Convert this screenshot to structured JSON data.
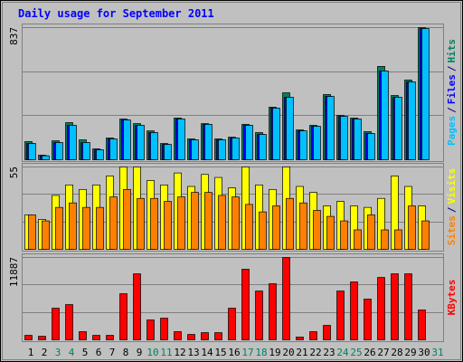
{
  "title": "Daily usage for September 2011",
  "legend_separator": "/",
  "categories": [
    "1",
    "2",
    "3",
    "4",
    "5",
    "6",
    "7",
    "8",
    "9",
    "10",
    "11",
    "12",
    "13",
    "14",
    "15",
    "16",
    "17",
    "18",
    "19",
    "20",
    "21",
    "22",
    "23",
    "24",
    "25",
    "26",
    "27",
    "28",
    "29",
    "30",
    "31"
  ],
  "category_colors": [
    "#000000",
    "#000000",
    "#00805C",
    "#00805C",
    "#000000",
    "#000000",
    "#000000",
    "#000000",
    "#000000",
    "#00805C",
    "#00805C",
    "#000000",
    "#000000",
    "#000000",
    "#000000",
    "#000000",
    "#00805C",
    "#00805C",
    "#000000",
    "#000000",
    "#000000",
    "#000000",
    "#000000",
    "#00805C",
    "#00805C",
    "#000000",
    "#000000",
    "#000000",
    "#000000",
    "#000000",
    "#00805C"
  ],
  "chart_data": [
    {
      "type": "bar",
      "ylim": [
        0,
        837
      ],
      "yticks": [
        837
      ],
      "series": [
        {
          "name": "Hits",
          "color": "#00805C",
          "values": [
            115,
            29,
            120,
            235,
            126,
            69,
            138,
            258,
            229,
            183,
            103,
            264,
            132,
            229,
            132,
            143,
            224,
            172,
            333,
            424,
            189,
            218,
            413,
            281,
            264,
            178,
            591,
            407,
            505,
            837,
            0
          ]
        },
        {
          "name": "Files",
          "color": "#0000FF",
          "values": [
            103,
            25,
            109,
            218,
            109,
            63,
            132,
            252,
            218,
            172,
            97,
            258,
            126,
            224,
            126,
            138,
            218,
            160,
            327,
            396,
            183,
            212,
            401,
            275,
            258,
            166,
            562,
            396,
            493,
            831,
            0
          ]
        },
        {
          "name": "Pages",
          "color": "#00C0FF",
          "values": [
            103,
            25,
            109,
            218,
            109,
            63,
            132,
            252,
            218,
            172,
            97,
            258,
            126,
            224,
            126,
            138,
            218,
            160,
            327,
            396,
            183,
            212,
            401,
            275,
            258,
            166,
            562,
            396,
            493,
            831,
            0
          ]
        }
      ]
    },
    {
      "type": "bar",
      "ylim": [
        0,
        55
      ],
      "yticks": [
        55
      ],
      "series": [
        {
          "name": "Visits",
          "color": "#FFFF00",
          "values": [
            23,
            20,
            36,
            43,
            40,
            43,
            49,
            55,
            55,
            46,
            43,
            51,
            42,
            50,
            48,
            41,
            55,
            43,
            40,
            55,
            42,
            38,
            29,
            32,
            29,
            28,
            34,
            49,
            42,
            29,
            0
          ]
        },
        {
          "name": "Sites",
          "color": "#FF8000",
          "values": [
            23,
            19,
            28,
            31,
            28,
            28,
            35,
            40,
            34,
            34,
            32,
            35,
            38,
            38,
            36,
            35,
            30,
            25,
            29,
            34,
            31,
            26,
            22,
            19,
            13,
            23,
            13,
            13,
            29,
            19,
            0
          ]
        }
      ]
    },
    {
      "type": "bar",
      "ylim": [
        0,
        11887
      ],
      "yticks": [
        11887
      ],
      "series": [
        {
          "name": "KBytes",
          "color": "#FF0000",
          "values": [
            650,
            520,
            4570,
            5090,
            1180,
            650,
            650,
            6660,
            9530,
            2870,
            3130,
            1180,
            780,
            1040,
            1040,
            4570,
            10190,
            7050,
            8100,
            11887,
            400,
            1180,
            2090,
            7050,
            8360,
            5880,
            9010,
            9530,
            9530,
            4310,
            0
          ]
        }
      ]
    }
  ]
}
